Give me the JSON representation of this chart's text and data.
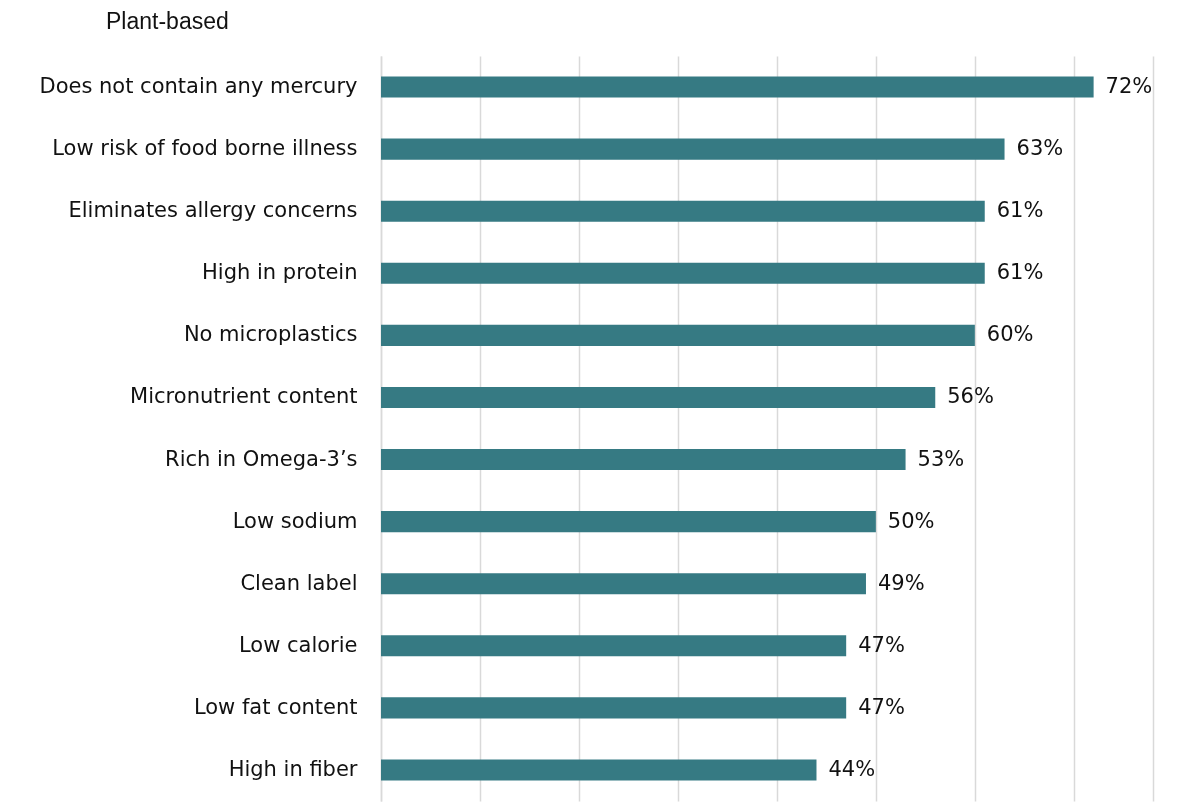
{
  "chart_data": {
    "type": "bar",
    "orientation": "horizontal",
    "title": "Plant-based",
    "categories": [
      "Does not contain any mercury",
      "Low risk of food borne illness",
      "Eliminates allergy concerns",
      "High in protein",
      "No microplastics",
      "Micronutrient content",
      "Rich in Omega-3’s",
      "Low sodium",
      "Clean label",
      "Low calorie",
      "Low fat content",
      "High in fiber"
    ],
    "values": [
      72,
      63,
      61,
      61,
      60,
      56,
      53,
      50,
      49,
      47,
      47,
      44
    ],
    "value_labels": [
      "72%",
      "63%",
      "61%",
      "61%",
      "60%",
      "56%",
      "53%",
      "50%",
      "49%",
      "47%",
      "47%",
      "44%"
    ],
    "color": "#367a83",
    "xlim": [
      0,
      78
    ],
    "xticks": [
      {
        "value": 0,
        "label": null
      },
      {
        "value": 10,
        "label": null
      },
      {
        "value": 20,
        "label": null
      },
      {
        "value": 30,
        "label": null
      },
      {
        "value": 40,
        "label": null
      },
      {
        "value": 50,
        "label": null
      },
      {
        "value": 60,
        "label": null
      },
      {
        "value": 70,
        "label": null
      },
      {
        "value": 78,
        "label": null
      }
    ],
    "grid": true,
    "tick_labels": "y"
  }
}
